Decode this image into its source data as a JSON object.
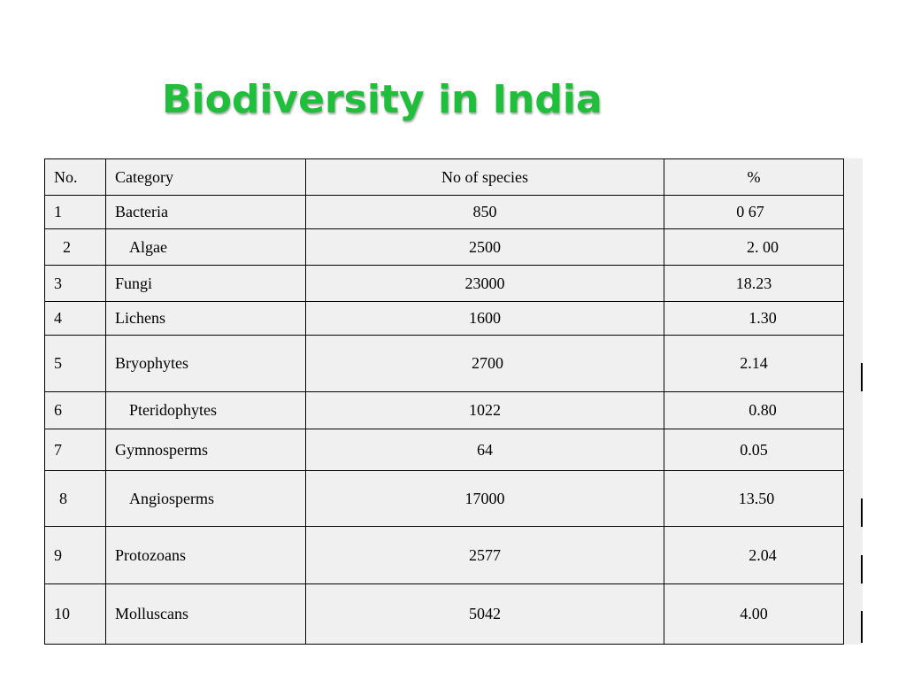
{
  "title": "Biodiversity in India",
  "table": {
    "headers": [
      "No.",
      "Category",
      "No of species",
      "%"
    ],
    "rows": [
      {
        "no": "1",
        "category": "Bacteria",
        "species": "850",
        "percent": "0 67"
      },
      {
        "no": "2",
        "category": "Algae",
        "species": "2500",
        "percent": "2. 00"
      },
      {
        "no": "3",
        "category": "Fungi",
        "species": "23000",
        "percent": "18.23"
      },
      {
        "no": "4",
        "category": "Lichens",
        "species": "1600",
        "percent": "1.30"
      },
      {
        "no": "5",
        "category": "Bryophytes",
        "species": "2700",
        "percent": "2.14"
      },
      {
        "no": "6",
        "category": "Pteridophytes",
        "species": "1022",
        "percent": "0.80"
      },
      {
        "no": "7",
        "category": "Gymnosperms",
        "species": "64",
        "percent": "0.05"
      },
      {
        "no": "8",
        "category": "Angiosperms",
        "species": "17000",
        "percent": "13.50"
      },
      {
        "no": "9",
        "category": "Protozoans",
        "species": "2577",
        "percent": "2.04"
      },
      {
        "no": "10",
        "category": "Molluscans",
        "species": "5042",
        "percent": "4.00"
      }
    ]
  },
  "colors": {
    "title": "#1fbf3c",
    "table_background": "#f0f0f0",
    "border": "#000000"
  }
}
